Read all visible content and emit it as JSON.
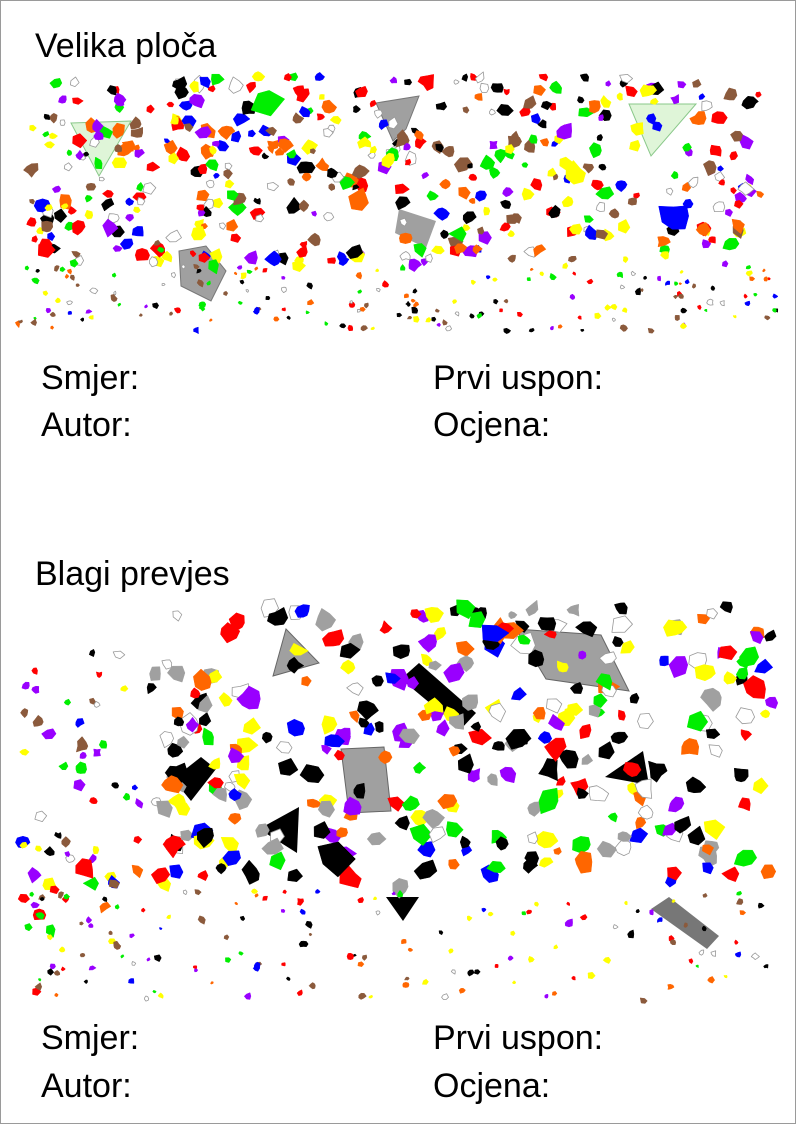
{
  "walls": [
    {
      "title": "Velika ploča",
      "fields": {
        "route": "Smjer:",
        "first_ascent": "Prvi uspon:",
        "author": "Autor:",
        "grade": "Ocjena:"
      }
    },
    {
      "title": "Blagi prevjes",
      "fields": {
        "route": "Smjer:",
        "first_ascent": "Prvi uspon:",
        "author": "Autor:",
        "grade": "Ocjena:"
      }
    }
  ],
  "hold_colors": [
    "#0000ff",
    "#ff0000",
    "#ffff00",
    "#00ee00",
    "#9900ff",
    "#ff6600",
    "#000000",
    "#8b5a3c",
    "#ffffff"
  ],
  "volume_colors": {
    "grey": "#a0a0a0",
    "light_green": "#dff5d8"
  }
}
